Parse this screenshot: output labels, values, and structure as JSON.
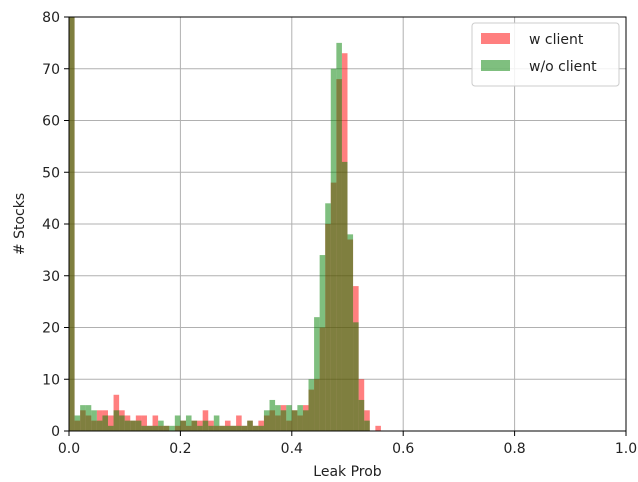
{
  "chart_data": {
    "type": "histogram",
    "xlabel": "Leak Prob",
    "ylabel": "# Stocks",
    "xlim": [
      0.0,
      1.0
    ],
    "ylim": [
      0,
      80
    ],
    "xticks": [
      "0.0",
      "0.2",
      "0.4",
      "0.6",
      "0.8",
      "1.0"
    ],
    "yticks": [
      "0",
      "10",
      "20",
      "30",
      "40",
      "50",
      "60",
      "70",
      "80"
    ],
    "xtick_values": [
      0.0,
      0.2,
      0.4,
      0.6,
      0.8,
      1.0
    ],
    "ytick_values": [
      0,
      10,
      20,
      30,
      40,
      50,
      60,
      70,
      80
    ],
    "grid": true,
    "legend_position": "top-right",
    "bin_width": 0.01,
    "series": [
      {
        "name": "w client",
        "color": "#ff0000",
        "opacity": 0.5,
        "bin_starts": [
          0.0,
          0.01,
          0.02,
          0.03,
          0.04,
          0.05,
          0.06,
          0.07,
          0.08,
          0.09,
          0.1,
          0.11,
          0.12,
          0.13,
          0.14,
          0.15,
          0.16,
          0.17,
          0.18,
          0.19,
          0.2,
          0.21,
          0.22,
          0.23,
          0.24,
          0.25,
          0.26,
          0.27,
          0.28,
          0.29,
          0.3,
          0.31,
          0.32,
          0.33,
          0.34,
          0.35,
          0.36,
          0.37,
          0.38,
          0.39,
          0.4,
          0.41,
          0.42,
          0.43,
          0.44,
          0.45,
          0.46,
          0.47,
          0.48,
          0.49,
          0.5,
          0.51,
          0.52,
          0.53,
          0.54,
          0.55
        ],
        "counts": [
          80,
          2,
          4,
          3,
          2,
          4,
          4,
          3,
          7,
          4,
          3,
          2,
          3,
          3,
          1,
          3,
          1,
          1,
          0,
          1,
          2,
          1,
          2,
          2,
          4,
          2,
          1,
          1,
          2,
          1,
          3,
          1,
          2,
          1,
          2,
          3,
          4,
          3,
          5,
          2,
          4,
          3,
          5,
          8,
          10,
          20,
          40,
          48,
          68,
          73,
          37,
          28,
          10,
          4,
          0,
          1
        ]
      },
      {
        "name": "w/o client",
        "color": "#008000",
        "opacity": 0.5,
        "bin_starts": [
          0.0,
          0.01,
          0.02,
          0.03,
          0.04,
          0.05,
          0.06,
          0.07,
          0.08,
          0.09,
          0.1,
          0.11,
          0.12,
          0.13,
          0.14,
          0.15,
          0.16,
          0.17,
          0.18,
          0.19,
          0.2,
          0.21,
          0.22,
          0.23,
          0.24,
          0.25,
          0.26,
          0.27,
          0.28,
          0.29,
          0.3,
          0.31,
          0.32,
          0.33,
          0.34,
          0.35,
          0.36,
          0.37,
          0.38,
          0.39,
          0.4,
          0.41,
          0.42,
          0.43,
          0.44,
          0.45,
          0.46,
          0.47,
          0.48,
          0.49,
          0.5,
          0.51,
          0.52,
          0.53,
          0.54,
          0.55
        ],
        "counts": [
          80,
          3,
          5,
          5,
          4,
          2,
          3,
          1,
          4,
          3,
          2,
          2,
          2,
          1,
          1,
          1,
          2,
          1,
          1,
          3,
          2,
          3,
          2,
          1,
          2,
          1,
          3,
          1,
          1,
          1,
          1,
          1,
          2,
          1,
          1,
          4,
          6,
          5,
          4,
          5,
          4,
          5,
          4,
          10,
          22,
          34,
          44,
          70,
          75,
          52,
          38,
          21,
          6,
          2,
          0,
          0
        ]
      }
    ]
  }
}
